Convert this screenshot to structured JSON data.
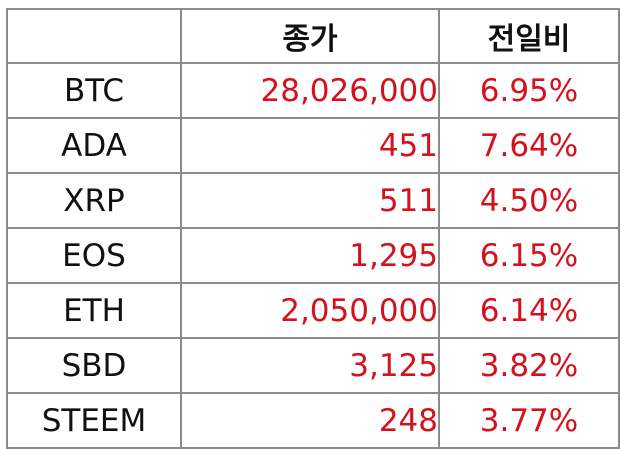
{
  "header": {
    "close_label": "종가",
    "change_label": "전일비"
  },
  "colors": {
    "value_text": "#d4121e",
    "label_text": "#111111",
    "grid": "#8c8c8c"
  },
  "rows": [
    {
      "name": "BTC",
      "close": "28,026,000",
      "change": "6.95%"
    },
    {
      "name": "ADA",
      "close": "451",
      "change": "7.64%"
    },
    {
      "name": "XRP",
      "close": "511",
      "change": "4.50%"
    },
    {
      "name": "EOS",
      "close": "1,295",
      "change": "6.15%"
    },
    {
      "name": "ETH",
      "close": "2,050,000",
      "change": "6.14%"
    },
    {
      "name": "SBD",
      "close": "3,125",
      "change": "3.82%"
    },
    {
      "name": "STEEM",
      "close": "248",
      "change": "3.77%"
    }
  ]
}
